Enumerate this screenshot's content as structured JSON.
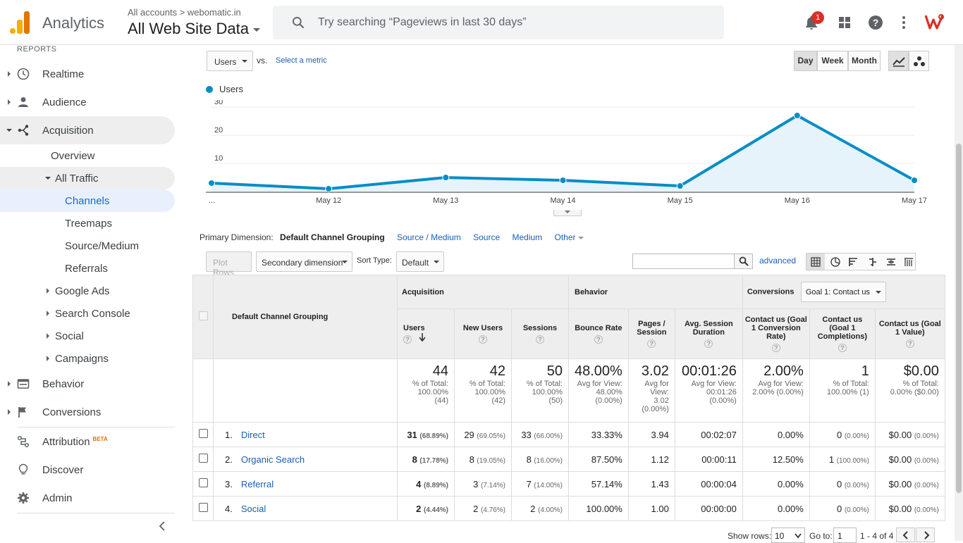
{
  "header": {
    "app_name": "Analytics",
    "account_path": "All accounts > webomatic.in",
    "property": "All Web Site Data",
    "search_placeholder": "Try searching “Pageviews in last 30 days”",
    "notification_count": "1"
  },
  "sidebar": {
    "section_label": "REPORTS",
    "items": [
      {
        "label": "Realtime",
        "icon": "clock-icon"
      },
      {
        "label": "Audience",
        "icon": "person-icon"
      },
      {
        "label": "Acquisition",
        "icon": "acquisition-icon"
      },
      {
        "label": "Behavior",
        "icon": "behavior-icon"
      },
      {
        "label": "Conversions",
        "icon": "flag-icon"
      },
      {
        "label": "Attribution",
        "icon": "attribution-icon",
        "badge": "BETA"
      },
      {
        "label": "Discover",
        "icon": "lightbulb-icon"
      },
      {
        "label": "Admin",
        "icon": "gear-icon"
      }
    ],
    "acquisition_sub": {
      "overview": "Overview",
      "all_traffic": "All Traffic",
      "all_traffic_items": [
        "Channels",
        "Treemaps",
        "Source/Medium",
        "Referrals"
      ],
      "groups": [
        "Google Ads",
        "Search Console",
        "Social",
        "Campaigns"
      ]
    }
  },
  "toolbar": {
    "metric_select": "Users",
    "vs_label": "vs.",
    "select_metric": "Select a metric",
    "periods": [
      "Day",
      "Week",
      "Month"
    ],
    "active_period": "Day"
  },
  "chart_data": {
    "type": "line",
    "series": [
      {
        "name": "Users",
        "values": [
          3,
          1,
          5,
          4,
          2,
          27,
          4
        ]
      }
    ],
    "categories": [
      "...",
      "May 12",
      "May 13",
      "May 14",
      "May 15",
      "May 16",
      "May 17"
    ],
    "y_ticks": [
      "10",
      "20",
      "30"
    ],
    "ylim": [
      0,
      30
    ],
    "color": "#058dc7"
  },
  "dimensions": {
    "label": "Primary Dimension:",
    "selected": "Default Channel Grouping",
    "options": [
      "Source / Medium",
      "Source",
      "Medium",
      "Other"
    ]
  },
  "table_controls": {
    "plot_rows": "Plot Rows",
    "secondary_dimension": "Secondary dimension",
    "sort_type_label": "Sort Type:",
    "sort_type": "Default",
    "advanced": "advanced"
  },
  "table": {
    "col_dimension": "Default Channel Grouping",
    "groups": {
      "acquisition": "Acquisition",
      "behavior": "Behavior",
      "conversions": "Conversions",
      "goal_select": "Goal 1: Contact us"
    },
    "columns": [
      "Users",
      "New Users",
      "Sessions",
      "Bounce Rate",
      "Pages / Session",
      "Avg. Session Duration",
      "Contact us (Goal 1 Conversion Rate)",
      "Contact us (Goal 1 Completions)",
      "Contact us (Goal 1 Value)"
    ],
    "totals": [
      {
        "big": "44",
        "sub": "% of Total: 100.00% (44)"
      },
      {
        "big": "42",
        "sub": "% of Total: 100.00% (42)"
      },
      {
        "big": "50",
        "sub": "% of Total: 100.00% (50)"
      },
      {
        "big": "48.00%",
        "sub": "Avg for View: 48.00% (0.00%)"
      },
      {
        "big": "3.02",
        "sub": "Avg for View: 3.02 (0.00%)"
      },
      {
        "big": "00:01:26",
        "sub": "Avg for View: 00:01:26 (0.00%)"
      },
      {
        "big": "2.00%",
        "sub": "Avg for View: 2.00% (0.00%)"
      },
      {
        "big": "1",
        "sub": "% of Total: 100.00% (1)"
      },
      {
        "big": "$0.00",
        "sub": "% of Total: 0.00% ($0.00)"
      }
    ],
    "rows": [
      {
        "idx": "1.",
        "name": "Direct",
        "users": "31",
        "users_pct": "(68.89%)",
        "new": "29",
        "new_pct": "(69.05%)",
        "sessions": "33",
        "sess_pct": "(66.00%)",
        "bounce": "33.33%",
        "pps": "3.94",
        "dur": "00:02:07",
        "conv": "0.00%",
        "comp": "0",
        "comp_pct": "(0.00%)",
        "val": "$0.00",
        "val_pct": "(0.00%)"
      },
      {
        "idx": "2.",
        "name": "Organic Search",
        "users": "8",
        "users_pct": "(17.78%)",
        "new": "8",
        "new_pct": "(19.05%)",
        "sessions": "8",
        "sess_pct": "(16.00%)",
        "bounce": "87.50%",
        "pps": "1.12",
        "dur": "00:00:11",
        "conv": "12.50%",
        "comp": "1",
        "comp_pct": "(100.00%)",
        "val": "$0.00",
        "val_pct": "(0.00%)"
      },
      {
        "idx": "3.",
        "name": "Referral",
        "users": "4",
        "users_pct": "(8.89%)",
        "new": "3",
        "new_pct": "(7.14%)",
        "sessions": "7",
        "sess_pct": "(14.00%)",
        "bounce": "57.14%",
        "pps": "1.43",
        "dur": "00:00:04",
        "conv": "0.00%",
        "comp": "0",
        "comp_pct": "(0.00%)",
        "val": "$0.00",
        "val_pct": "(0.00%)"
      },
      {
        "idx": "4.",
        "name": "Social",
        "users": "2",
        "users_pct": "(4.44%)",
        "new": "2",
        "new_pct": "(4.76%)",
        "sessions": "2",
        "sess_pct": "(4.00%)",
        "bounce": "100.00%",
        "pps": "1.00",
        "dur": "00:00:00",
        "conv": "0.00%",
        "comp": "0",
        "comp_pct": "(0.00%)",
        "val": "$0.00",
        "val_pct": "(0.00%)"
      }
    ]
  },
  "footer": {
    "show_rows_label": "Show rows:",
    "show_rows": "10",
    "goto_label": "Go to:",
    "goto": "1",
    "range": "1 - 4 of 4"
  }
}
